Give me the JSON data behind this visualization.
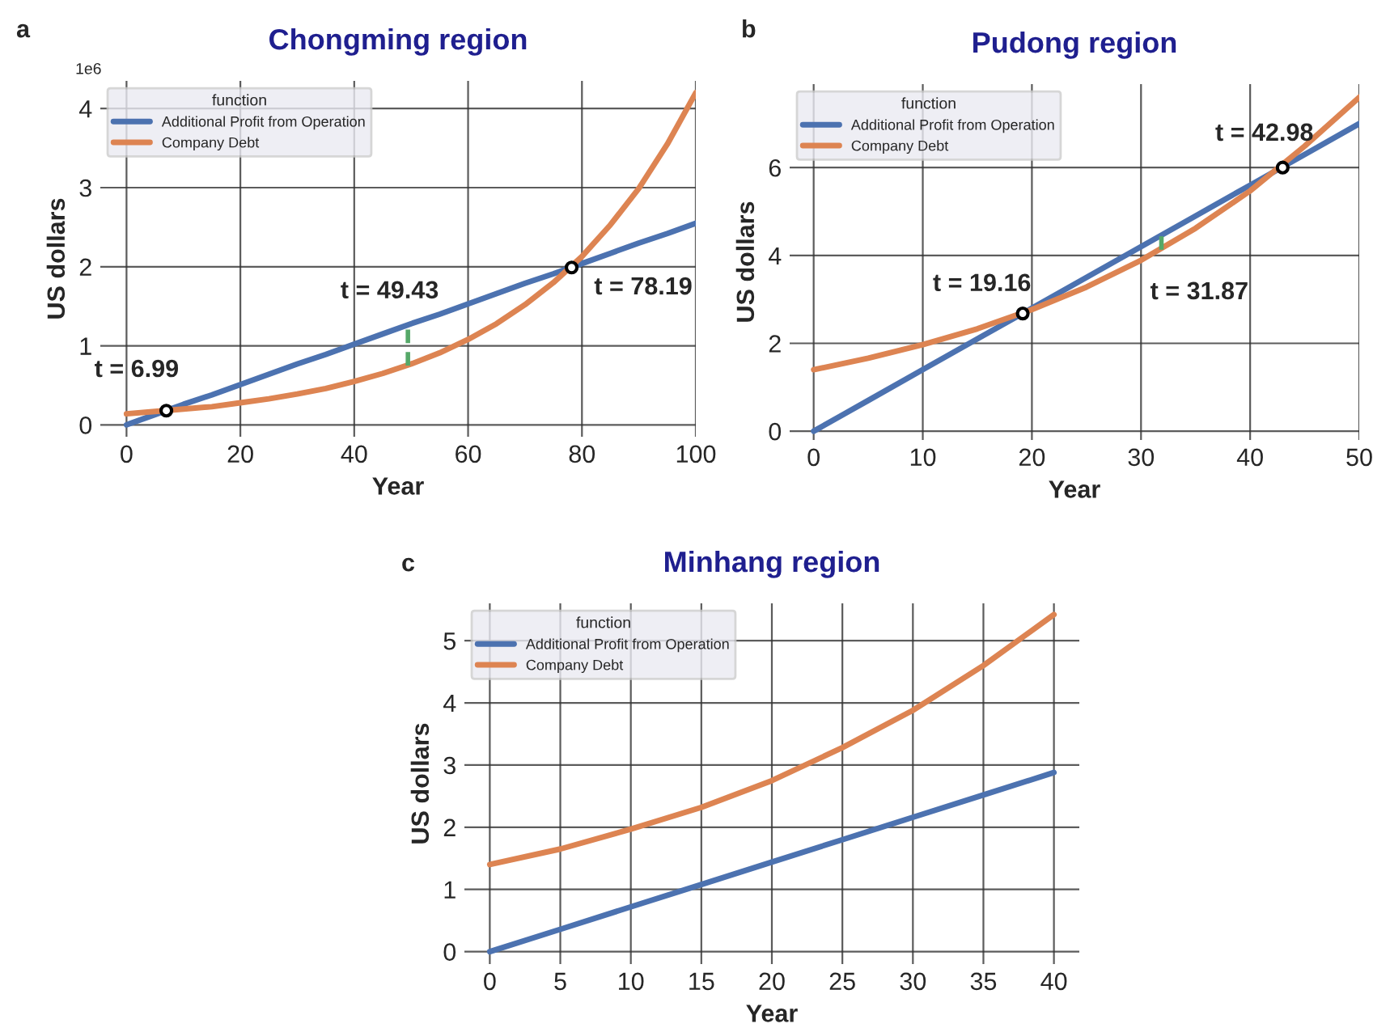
{
  "chart_data": [
    {
      "type": "line",
      "title": "Chongming region",
      "xlabel": "Year",
      "ylabel": "US dollars",
      "legend_title": "function",
      "legend": "top left",
      "grid": true,
      "xlim": [
        -4.6,
        100
      ],
      "xticks": [
        0,
        20,
        40,
        60,
        80,
        100
      ],
      "ylim": [
        -0.15,
        4.35
      ],
      "yticks": [
        0,
        1,
        2,
        3,
        4
      ],
      "x": [
        0,
        5,
        10,
        15,
        20,
        25,
        30,
        35,
        40,
        45,
        50,
        55,
        60,
        65,
        70,
        75,
        80,
        85,
        90,
        95,
        100
      ],
      "series": [
        {
          "name": "Additional Profit from Operation",
          "color": "#4c72b0",
          "values": [
            0,
            0.13,
            0.26,
            0.38,
            0.51,
            0.64,
            0.77,
            0.89,
            1.02,
            1.15,
            1.28,
            1.4,
            1.53,
            1.66,
            1.79,
            1.91,
            2.04,
            2.17,
            2.3,
            2.42,
            2.55
          ]
        },
        {
          "name": "Company Debt",
          "color": "#dd8452",
          "values": [
            0.14,
            0.17,
            0.2,
            0.23,
            0.28,
            0.33,
            0.39,
            0.46,
            0.55,
            0.65,
            0.77,
            0.91,
            1.08,
            1.28,
            1.52,
            1.8,
            2.13,
            2.53,
            2.99,
            3.55,
            4.2
          ]
        },
        {
          "type": "line",
          "color": "#55a868",
          "line_style": "dashed",
          "x": [
            49.43,
            49.43
          ],
          "values": [
            0.75,
            1.26
          ]
        },
        {
          "type": "scatter",
          "color": "#000000",
          "marker": "circle",
          "x": [
            6.99,
            78.19
          ],
          "values": [
            0.18,
            1.99
          ]
        }
      ],
      "annotations": [
        "a",
        "1e6",
        {
          "text": "t = 6.99",
          "x": 6.99,
          "y": 0.18
        },
        {
          "text": "t = 49.43",
          "x": 49.43,
          "y": 1.26
        },
        {
          "text": "t = 78.19",
          "x": 78.19,
          "y": 1.99
        }
      ]
    },
    {
      "type": "line",
      "title": "Pudong region",
      "xlabel": "Year",
      "ylabel": "US dollars",
      "legend_title": "function",
      "legend": "top left",
      "grid": true,
      "xlim": [
        -2.2,
        50
      ],
      "xticks": [
        0,
        10,
        20,
        30,
        40,
        50
      ],
      "ylim": [
        -0.2,
        7.9
      ],
      "yticks": [
        0,
        2,
        4,
        6
      ],
      "x": [
        0,
        5,
        10,
        15,
        20,
        25,
        30,
        35,
        40,
        45,
        50
      ],
      "series": [
        {
          "name": "Additional Profit from Operation",
          "color": "#4c72b0",
          "values": [
            0,
            0.7,
            1.4,
            2.1,
            2.8,
            3.5,
            4.2,
            4.9,
            5.6,
            6.3,
            7.0
          ]
        },
        {
          "name": "Company Debt",
          "color": "#dd8452",
          "values": [
            1.4,
            1.66,
            1.97,
            2.33,
            2.77,
            3.28,
            3.89,
            4.62,
            5.47,
            6.49,
            7.6
          ]
        },
        {
          "type": "line",
          "color": "#55a868",
          "line_style": "dashed",
          "x": [
            31.87,
            31.87
          ],
          "values": [
            4.13,
            4.46
          ]
        },
        {
          "type": "scatter",
          "color": "#000000",
          "marker": "circle",
          "x": [
            19.16,
            42.98
          ],
          "values": [
            2.68,
            6.0
          ]
        }
      ],
      "annotations": [
        "b",
        {
          "text": "t = 19.16",
          "x": 19.16,
          "y": 2.68
        },
        {
          "text": "t = 31.87",
          "x": 31.87,
          "y": 4.13
        },
        {
          "text": "t = 42.98",
          "x": 42.98,
          "y": 6.0
        }
      ]
    },
    {
      "type": "line",
      "title": "Minhang region",
      "xlabel": "Year",
      "ylabel": "US dollars",
      "legend_title": "function",
      "legend": "top left",
      "grid": true,
      "xlim": [
        -1.8,
        41.8
      ],
      "xticks": [
        0,
        5,
        10,
        15,
        20,
        25,
        30,
        35,
        40
      ],
      "ylim": [
        -0.2,
        5.6
      ],
      "yticks": [
        0,
        1,
        2,
        3,
        4,
        5
      ],
      "x": [
        0,
        5,
        10,
        15,
        20,
        25,
        30,
        35,
        40
      ],
      "series": [
        {
          "name": "Additional Profit from Operation",
          "color": "#4c72b0",
          "values": [
            0,
            0.36,
            0.72,
            1.08,
            1.44,
            1.8,
            2.16,
            2.52,
            2.88
          ]
        },
        {
          "name": "Company Debt",
          "color": "#dd8452",
          "values": [
            1.4,
            1.65,
            1.97,
            2.32,
            2.75,
            3.28,
            3.88,
            4.6,
            5.42
          ]
        }
      ],
      "annotations": [
        "c"
      ]
    }
  ]
}
